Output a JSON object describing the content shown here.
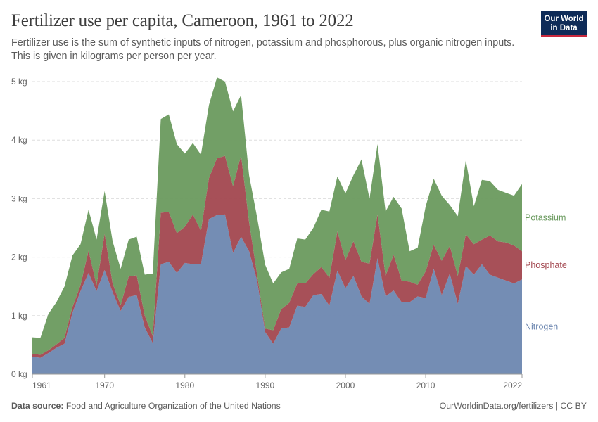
{
  "header": {
    "title": "Fertilizer use per capita, Cameroon, 1961 to 2022",
    "subtitle": "Fertilizer use is the sum of synthetic inputs of nitrogen, potassium and phosphorous, plus organic nitrogen inputs. This is given in kilograms per person per year."
  },
  "logo": {
    "line1": "Our World",
    "line2": "in Data"
  },
  "footer": {
    "source_label": "Data source:",
    "source_text": "Food and Agriculture Organization of the United Nations",
    "right_text": "OurWorldinData.org/fertilizers | CC BY"
  },
  "colors": {
    "nitrogen": "#6d87b0",
    "phosphate": "#a2474f",
    "potassium": "#6a9a5e",
    "grid": "#dddddd"
  },
  "chart_data": {
    "type": "area",
    "stacked": true,
    "title": "Fertilizer use per capita, Cameroon, 1961 to 2022",
    "unit": "kg",
    "ylim": [
      0,
      5
    ],
    "xlim": [
      1961,
      2022
    ],
    "y_ticks": [
      0,
      1,
      2,
      3,
      4,
      5
    ],
    "y_tick_labels": [
      "0 kg",
      "1 kg",
      "2 kg",
      "3 kg",
      "4 kg",
      "5 kg"
    ],
    "x_ticks": [
      1961,
      1970,
      1980,
      1990,
      2000,
      2010,
      2022
    ],
    "x_tick_labels": [
      "1961",
      "1970",
      "1980",
      "1990",
      "2000",
      "2010",
      "2022"
    ],
    "legend_position": "right",
    "x": [
      1961,
      1962,
      1963,
      1964,
      1965,
      1966,
      1967,
      1968,
      1969,
      1970,
      1971,
      1972,
      1973,
      1974,
      1975,
      1976,
      1977,
      1978,
      1979,
      1980,
      1981,
      1982,
      1983,
      1984,
      1985,
      1986,
      1987,
      1988,
      1989,
      1990,
      1991,
      1992,
      1993,
      1994,
      1995,
      1996,
      1997,
      1998,
      1999,
      2000,
      2001,
      2002,
      2003,
      2004,
      2005,
      2006,
      2007,
      2008,
      2009,
      2010,
      2011,
      2012,
      2013,
      2014,
      2015,
      2016,
      2017,
      2018,
      2019,
      2020,
      2021,
      2022
    ],
    "series": [
      {
        "name": "Nitrogen",
        "color": "#6d87b0",
        "values": [
          0.3,
          0.28,
          0.36,
          0.45,
          0.52,
          1.05,
          1.42,
          1.73,
          1.42,
          1.78,
          1.4,
          1.08,
          1.32,
          1.35,
          0.8,
          0.53,
          1.88,
          1.92,
          1.73,
          1.9,
          1.88,
          1.88,
          2.65,
          2.72,
          2.73,
          2.07,
          2.35,
          2.1,
          1.6,
          0.72,
          0.52,
          0.78,
          0.8,
          1.17,
          1.15,
          1.35,
          1.37,
          1.17,
          1.77,
          1.47,
          1.68,
          1.33,
          1.2,
          1.98,
          1.33,
          1.43,
          1.23,
          1.23,
          1.33,
          1.3,
          1.8,
          1.35,
          1.72,
          1.2,
          1.85,
          1.7,
          1.88,
          1.7,
          1.65,
          1.6,
          1.55,
          1.62
        ]
      },
      {
        "name": "Phosphate",
        "color": "#a2474f",
        "values": [
          0.05,
          0.05,
          0.05,
          0.06,
          0.1,
          0.1,
          0.1,
          0.38,
          0.1,
          0.62,
          0.15,
          0.1,
          0.35,
          0.34,
          0.2,
          0.12,
          0.88,
          0.85,
          0.68,
          0.62,
          0.85,
          0.57,
          0.7,
          0.97,
          1.0,
          1.14,
          1.39,
          0.5,
          0.1,
          0.06,
          0.23,
          0.33,
          0.42,
          0.38,
          0.4,
          0.36,
          0.46,
          0.48,
          0.67,
          0.48,
          0.59,
          0.59,
          0.69,
          0.75,
          0.35,
          0.61,
          0.37,
          0.35,
          0.2,
          0.46,
          0.41,
          0.59,
          0.47,
          0.48,
          0.54,
          0.52,
          0.42,
          0.67,
          0.62,
          0.65,
          0.65,
          0.48
        ]
      },
      {
        "name": "Potassium",
        "color": "#6a9a5e",
        "values": [
          0.28,
          0.29,
          0.62,
          0.72,
          0.88,
          0.88,
          0.7,
          0.7,
          0.78,
          0.73,
          0.72,
          0.62,
          0.63,
          0.66,
          0.7,
          1.07,
          1.6,
          1.67,
          1.52,
          1.25,
          1.22,
          1.3,
          1.25,
          1.38,
          1.27,
          1.28,
          1.03,
          0.8,
          0.98,
          1.09,
          0.8,
          0.63,
          0.58,
          0.77,
          0.75,
          0.79,
          0.98,
          1.13,
          0.94,
          1.14,
          1.13,
          1.75,
          1.11,
          1.2,
          1.1,
          0.99,
          1.23,
          0.52,
          0.63,
          1.11,
          1.13,
          1.11,
          0.7,
          1.02,
          1.27,
          0.65,
          1.02,
          0.93,
          0.88,
          0.85,
          0.85,
          1.15
        ]
      }
    ],
    "legend": [
      "Potassium",
      "Phosphate",
      "Nitrogen"
    ]
  }
}
